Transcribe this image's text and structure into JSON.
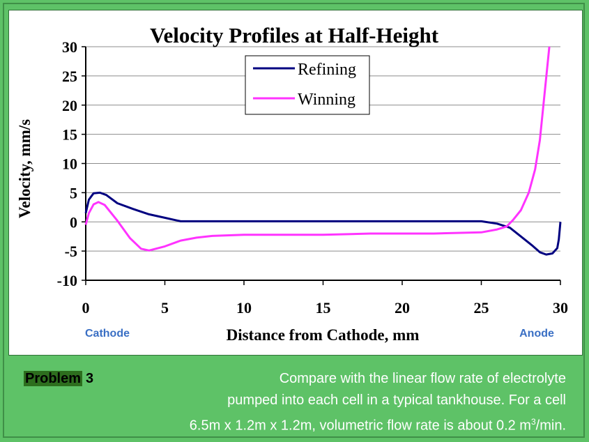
{
  "chart_data": {
    "type": "line",
    "title": "Velocity Profiles at Half-Height",
    "xlabel": "Distance from Cathode, mm",
    "ylabel": "Velocity, mm/s",
    "xlim": [
      0,
      30
    ],
    "ylim": [
      -10,
      30
    ],
    "x_ticks": [
      0,
      5,
      10,
      15,
      20,
      25,
      30
    ],
    "y_ticks": [
      30,
      25,
      20,
      15,
      10,
      5,
      0,
      -5,
      -10
    ],
    "grid": true,
    "legend_position": "top-center",
    "x_annotations": [
      {
        "text": "Cathode",
        "x": 0
      },
      {
        "text": "Anode",
        "x": 30
      }
    ],
    "series": [
      {
        "name": "Refining",
        "color": "#000080",
        "points": [
          [
            0,
            1.5
          ],
          [
            0.2,
            3.8
          ],
          [
            0.5,
            4.9
          ],
          [
            0.9,
            5.0
          ],
          [
            1.3,
            4.6
          ],
          [
            2,
            3.2
          ],
          [
            3,
            2.2
          ],
          [
            4,
            1.3
          ],
          [
            5,
            0.7
          ],
          [
            6,
            0.1
          ],
          [
            8,
            0.1
          ],
          [
            10,
            0.1
          ],
          [
            15,
            0.1
          ],
          [
            20,
            0.1
          ],
          [
            25,
            0.1
          ],
          [
            26,
            -0.3
          ],
          [
            26.8,
            -1.0
          ],
          [
            27.5,
            -2.5
          ],
          [
            28.2,
            -4.0
          ],
          [
            28.7,
            -5.2
          ],
          [
            29.1,
            -5.6
          ],
          [
            29.5,
            -5.4
          ],
          [
            29.8,
            -4.5
          ],
          [
            29.9,
            -3.0
          ],
          [
            30,
            0
          ]
        ]
      },
      {
        "name": "Winning",
        "color": "#ff33ff",
        "points": [
          [
            0,
            -0.5
          ],
          [
            0.2,
            1.5
          ],
          [
            0.5,
            3.0
          ],
          [
            0.8,
            3.4
          ],
          [
            1.2,
            2.9
          ],
          [
            2,
            0.2
          ],
          [
            2.8,
            -2.8
          ],
          [
            3.5,
            -4.6
          ],
          [
            4,
            -4.9
          ],
          [
            5,
            -4.2
          ],
          [
            6,
            -3.2
          ],
          [
            7,
            -2.7
          ],
          [
            8,
            -2.4
          ],
          [
            10,
            -2.2
          ],
          [
            15,
            -2.2
          ],
          [
            18,
            -2.0
          ],
          [
            22,
            -2.0
          ],
          [
            25,
            -1.8
          ],
          [
            26,
            -1.3
          ],
          [
            26.6,
            -0.8
          ],
          [
            27,
            0.3
          ],
          [
            27.5,
            2.0
          ],
          [
            28,
            5.0
          ],
          [
            28.4,
            9.0
          ],
          [
            28.7,
            14.0
          ],
          [
            29,
            22.0
          ],
          [
            29.3,
            30.0
          ]
        ]
      }
    ]
  },
  "problem": {
    "label": "Problem",
    "number": "3",
    "line1": "Compare with the linear flow rate of electrolyte",
    "line2": "pumped into each cell in a typical tankhouse.  For a cell",
    "line3_main": "6.5m x 1.2m x 1.2m, volumetric flow rate is about 0.2 m",
    "line3_sup": "3",
    "line3_end": "/min."
  }
}
